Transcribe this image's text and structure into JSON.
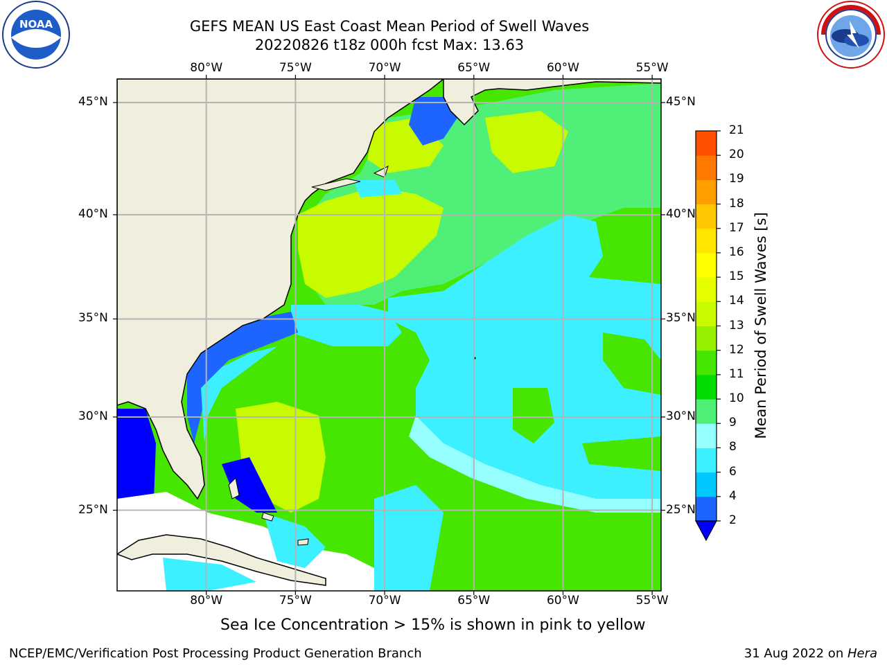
{
  "title": {
    "line1": "GEFS MEAN US East Coast Mean Period of Swell Waves",
    "line2": "20220826 t18z 000h fcst   Max: 13.63"
  },
  "lon_labels": [
    "80°W",
    "75°W",
    "70°W",
    "65°W",
    "60°W",
    "55°W"
  ],
  "lat_labels": [
    "45°N",
    "40°N",
    "35°N",
    "30°N",
    "25°N"
  ],
  "map_extent": {
    "lon_min": -85,
    "lon_max": -54.5,
    "lat_min": 20.5,
    "lat_max": 46
  },
  "subtitle": "Sea Ice Concentration > 15% is shown in pink to yellow",
  "footer": {
    "left": "NCEP/EMC/Verification Post Processing Product Generation Branch",
    "right_date": "31 Aug 2022 on ",
    "right_host": "Hera"
  },
  "colorbar": {
    "label": "Mean Period of Swell Waves [s]",
    "ticks": [
      "21",
      "20",
      "19",
      "18",
      "17",
      "16",
      "15",
      "14",
      "13",
      "12",
      "11",
      "10",
      "9",
      "8",
      "6",
      "4",
      "2"
    ],
    "colors_bottom_to_top": [
      "#1e64ff",
      "#00c8ff",
      "#3cf0ff",
      "#96ffff",
      "#50f078",
      "#00dc00",
      "#46e600",
      "#96f000",
      "#c8fa00",
      "#e6ff00",
      "#ffff00",
      "#ffe600",
      "#ffc800",
      "#ffa000",
      "#ff7800",
      "#ff5000",
      "#ff2800",
      "#ff0000"
    ],
    "under_color": "#0000ff"
  },
  "colors": {
    "land": "#f0eedc",
    "grid": "#b4b4b4",
    "coast": "#000000"
  },
  "logos": {
    "left": "noaa-logo",
    "right": "nws-logo"
  }
}
